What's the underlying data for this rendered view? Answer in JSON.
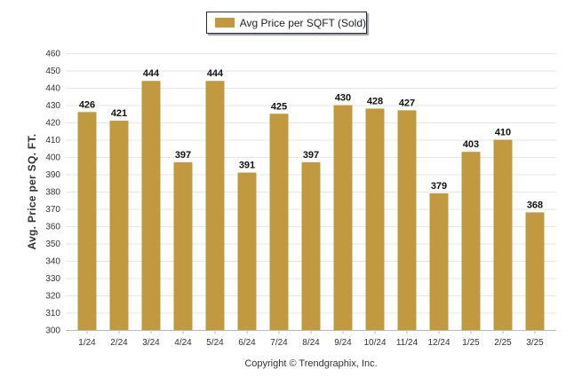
{
  "chart_data": {
    "type": "bar",
    "categories": [
      "1/24",
      "2/24",
      "3/24",
      "4/24",
      "5/24",
      "6/24",
      "7/24",
      "8/24",
      "9/24",
      "10/24",
      "11/24",
      "12/24",
      "1/25",
      "2/25",
      "3/25"
    ],
    "series": [
      {
        "name": "Avg Price per SQFT (Sold)",
        "values": [
          426,
          421,
          444,
          397,
          444,
          391,
          425,
          397,
          430,
          428,
          427,
          379,
          403,
          410,
          368
        ]
      }
    ],
    "ylabel": "Avg. Price per SQ. FT.",
    "xlabel": "",
    "ylim": [
      300,
      460
    ],
    "yticks": [
      300,
      310,
      320,
      330,
      340,
      350,
      360,
      370,
      380,
      390,
      400,
      410,
      420,
      430,
      440,
      450,
      460
    ],
    "grid": true,
    "legend_position": "top-center",
    "bar_color": "#C19A3F",
    "credit": "Copyright © Trendgraphix, Inc."
  }
}
